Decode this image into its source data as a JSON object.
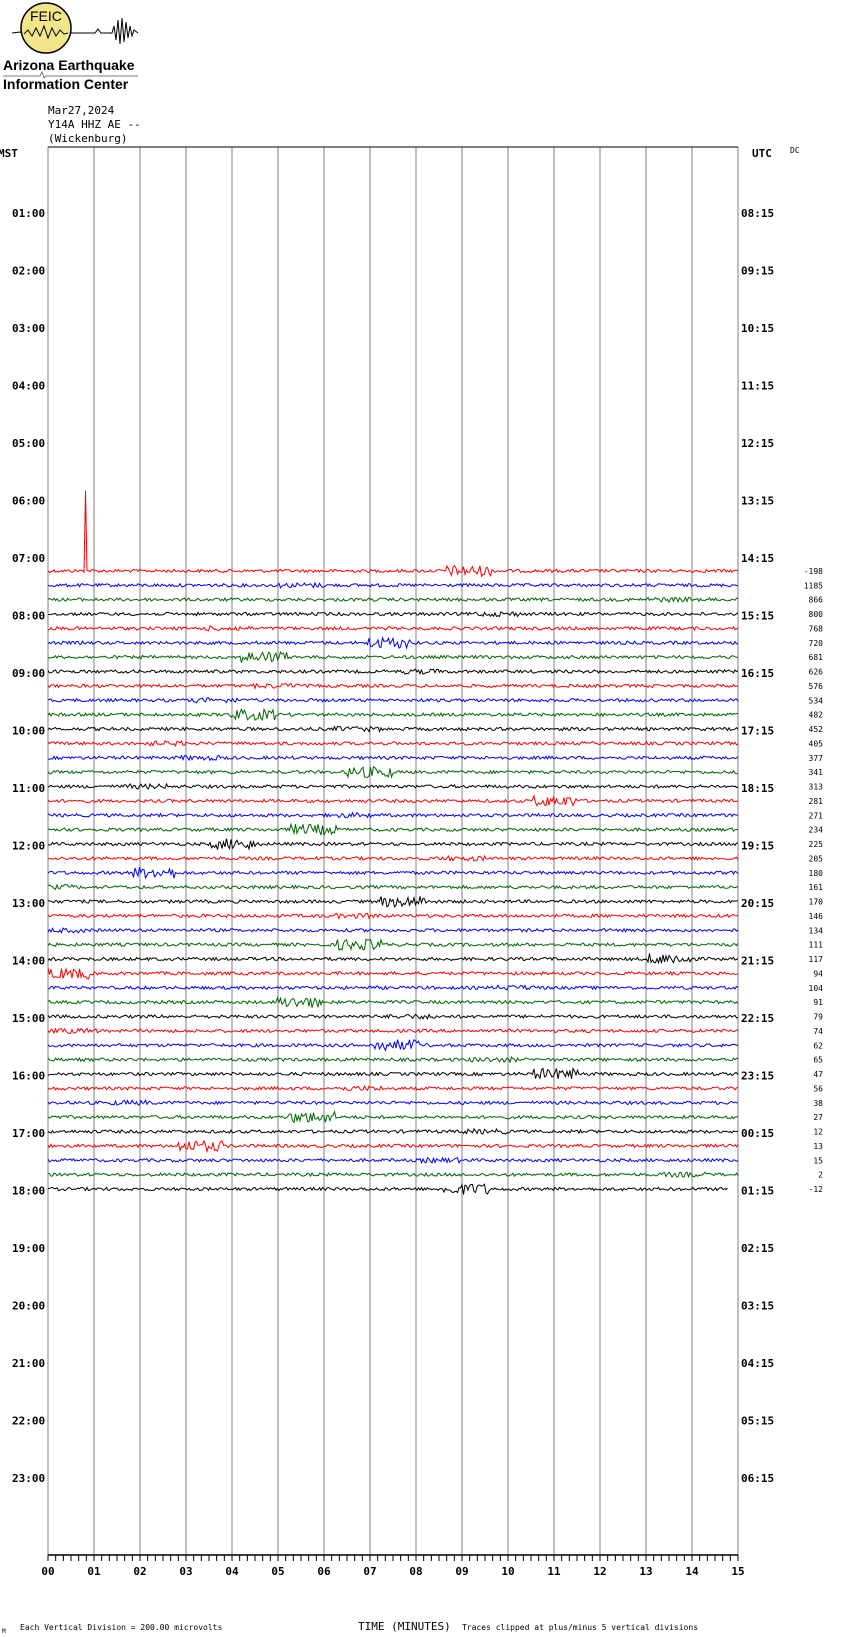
{
  "logo": {
    "acronym": "FEIC",
    "line1": "Arizona Earthquake",
    "line2": "Information Center"
  },
  "header": {
    "date": "Mar27,2024",
    "station": "Y14A HHZ AE --",
    "location": "(Wickenburg)"
  },
  "colors": {
    "trace_cycle": [
      "#ff0000",
      "#0000ff",
      "#006400",
      "#000000"
    ],
    "grid": "#808080",
    "logo_fill": "#f3e68a"
  },
  "chart_data": {
    "type": "line",
    "title": "Y14A HHZ AE -- (Wickenburg) Mar27,2024",
    "left_axis_title": "MST",
    "right_axis_title": "UTC",
    "dc_title": "DC",
    "xlabel": "TIME (MINUTES)",
    "xlim": [
      0,
      15
    ],
    "x_ticks": [
      "00",
      "01",
      "02",
      "03",
      "04",
      "05",
      "06",
      "07",
      "08",
      "09",
      "10",
      "11",
      "12",
      "13",
      "14",
      "15"
    ],
    "mst_labels": [
      "01:00",
      "02:00",
      "03:00",
      "04:00",
      "05:00",
      "06:00",
      "07:00",
      "08:00",
      "09:00",
      "10:00",
      "11:00",
      "12:00",
      "13:00",
      "14:00",
      "15:00",
      "16:00",
      "17:00",
      "18:00",
      "19:00",
      "20:00",
      "21:00",
      "22:00",
      "23:00"
    ],
    "utc_labels": [
      "08:15",
      "09:15",
      "10:15",
      "11:15",
      "12:15",
      "13:15",
      "14:15",
      "15:15",
      "16:15",
      "17:15",
      "18:15",
      "19:15",
      "20:15",
      "21:15",
      "22:15",
      "23:15",
      "00:15",
      "01:15",
      "02:15",
      "03:15",
      "04:15",
      "05:15",
      "06:15"
    ],
    "trace_start_mst": "07:15",
    "trace_interval_minutes": 15,
    "dc_offsets": [
      -198,
      1185,
      866,
      800,
      768,
      720,
      681,
      626,
      576,
      534,
      482,
      452,
      405,
      377,
      341,
      313,
      281,
      271,
      234,
      225,
      205,
      180,
      161,
      170,
      146,
      134,
      111,
      117,
      94,
      104,
      91,
      79,
      74,
      62,
      65,
      47,
      56,
      38,
      27,
      12,
      13,
      15,
      2,
      -12
    ],
    "footer_left": "Each Vertical Division =  200.00 microvolts",
    "footer_right": "Traces clipped at plus/minus 5 vertical divisions",
    "corner_mark": "M"
  }
}
